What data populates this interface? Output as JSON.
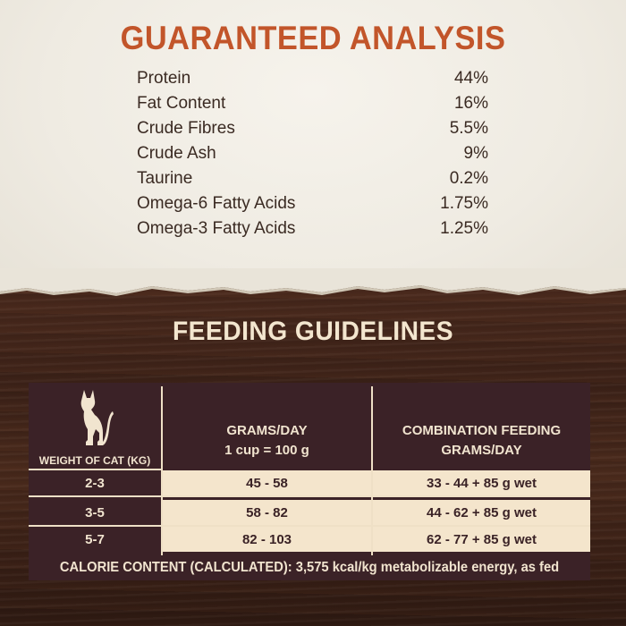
{
  "guaranteed_analysis": {
    "title": "GUARANTEED ANALYSIS",
    "rows": [
      {
        "label": "Protein",
        "value": "44%"
      },
      {
        "label": "Fat Content",
        "value": "16%"
      },
      {
        "label": "Crude Fibres",
        "value": "5.5%"
      },
      {
        "label": "Crude Ash",
        "value": "9%"
      },
      {
        "label": "Taurine",
        "value": "0.2%"
      },
      {
        "label": "Omega-6 Fatty Acids",
        "value": "1.75%"
      },
      {
        "label": "Omega-3 Fatty Acids",
        "value": "1.25%"
      }
    ]
  },
  "feeding_guidelines": {
    "title": "FEEDING GUIDELINES",
    "icon": "cat-icon",
    "headers": {
      "weight": "WEIGHT OF CAT (KG)",
      "grams_line1": "GRAMS/DAY",
      "grams_line2": "1 cup = 100 g",
      "combo_line1": "COMBINATION FEEDING",
      "combo_line2": "GRAMS/DAY"
    },
    "rows": [
      {
        "weight": "2-3",
        "grams": "45 - 58",
        "combo": "33 - 44 + 85 g wet"
      },
      {
        "weight": "3-5",
        "grams": "58 - 82",
        "combo": "44 - 62 + 85 g wet"
      },
      {
        "weight": "5-7",
        "grams": "82 - 103",
        "combo": "62 - 77 + 85 g wet"
      }
    ],
    "calorie": "CALORIE CONTENT (CALCULATED): 3,575 kcal/kg metabolizable energy, as fed"
  },
  "colors": {
    "accent": "#c2552a",
    "table_dark": "#3b2227",
    "table_light": "#f4e5cc"
  }
}
